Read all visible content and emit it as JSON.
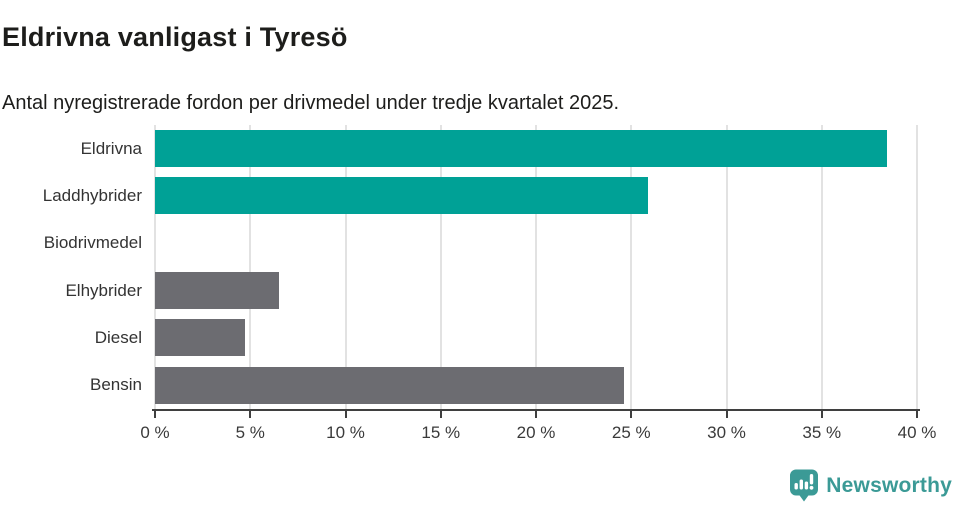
{
  "header": {
    "title": "Eldrivna vanligast i Tyresö",
    "subtitle": "Antal nyregistrerade fordon per drivmedel under tredje kvartalet 2025."
  },
  "chart_data": {
    "type": "bar",
    "orientation": "horizontal",
    "title": "Eldrivna vanligast i Tyresö",
    "subtitle": "Antal nyregistrerade fordon per drivmedel under tredje kvartalet 2025.",
    "categories": [
      "Eldrivna",
      "Laddhybrider",
      "Biodrivmedel",
      "Elhybrider",
      "Diesel",
      "Bensin"
    ],
    "values": [
      38.4,
      25.9,
      0,
      6.5,
      4.7,
      24.6
    ],
    "unit": "%",
    "xlim": [
      0,
      40
    ],
    "grid": true,
    "ticks": [
      {
        "value": 0,
        "label": "0 %"
      },
      {
        "value": 5,
        "label": "5 %"
      },
      {
        "value": 10,
        "label": "10 %"
      },
      {
        "value": 15,
        "label": "15 %"
      },
      {
        "value": 20,
        "label": "20 %"
      },
      {
        "value": 25,
        "label": "25 %"
      },
      {
        "value": 30,
        "label": "30 %"
      },
      {
        "value": 35,
        "label": "35 %"
      },
      {
        "value": 40,
        "label": "40 %"
      }
    ],
    "bar_colors": [
      "#00a196",
      "#00a196",
      "#6c6c71",
      "#6c6c71",
      "#6c6c71",
      "#6c6c71"
    ],
    "palette": {
      "electric_teal": "#00a196",
      "other_gray": "#6c6c71",
      "gridline": "#e2e2e2",
      "axis": "#3f3f3f"
    }
  },
  "footer": {
    "brand": "Newsworthy",
    "brand_color": "#3b9a96",
    "logo_icon": "bar-chart-speech-bubble-icon"
  }
}
